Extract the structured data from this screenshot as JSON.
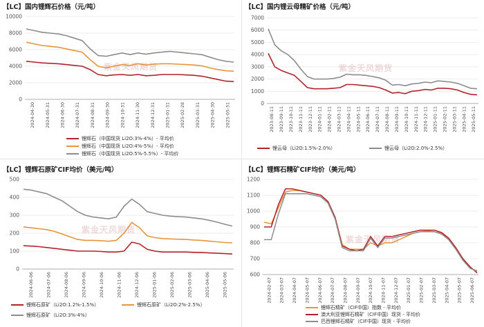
{
  "colors": {
    "red": "#b4202a",
    "orange": "#e8943a",
    "gray": "#8c8c8c",
    "brown": "#7a4b2a",
    "grid": "#e4e4e4",
    "axis": "#999999",
    "tick_text": "#555555"
  },
  "watermark": "紫金天风期货",
  "chart_data": [
    {
      "type": "line",
      "title": "【LC】国内锂辉石价格（元/吨）",
      "ylim": [
        0,
        10000
      ],
      "yticks": [
        0,
        2000,
        4000,
        6000,
        8000,
        10000
      ],
      "xticks": [
        "2024-04-30",
        "2024-05-31",
        "2024-06-30",
        "2024-07-31",
        "2024-08-31",
        "2024-09-30",
        "2024-10-31",
        "2024-11-30",
        "2024-12-31",
        "2025-01-31",
        "2025-02-28",
        "2025-03-31",
        "2025-04-30",
        "2025-05-31"
      ],
      "series": [
        {
          "name": "锂辉石（中国现货 Li2O:3%-4%）- 平均价",
          "color": "red",
          "values": [
            4600,
            4500,
            4400,
            4350,
            4300,
            4200,
            4100,
            4000,
            3600,
            3000,
            2850,
            2950,
            3000,
            2900,
            3000,
            2850,
            2900,
            3000,
            3000,
            3000,
            2950,
            2900,
            2800,
            2600,
            2400,
            2200,
            2150
          ]
        },
        {
          "name": "锂辉石（中国现货 Li2O:4%-5%）- 平均价",
          "color": "orange",
          "values": [
            6900,
            6700,
            6500,
            6400,
            6300,
            6100,
            5900,
            5700,
            4800,
            4000,
            3800,
            4000,
            4200,
            4100,
            4300,
            4150,
            4250,
            4300,
            4300,
            4250,
            4200,
            4150,
            4050,
            3800,
            3600,
            3450,
            3400
          ]
        },
        {
          "name": "锂辉石（中国现货 Li2O:5%-5.5%）- 平均价",
          "color": "gray",
          "values": [
            8500,
            8300,
            8100,
            8000,
            7900,
            7700,
            7400,
            7100,
            6100,
            5300,
            5200,
            5400,
            5600,
            5400,
            5600,
            5450,
            5600,
            5700,
            5800,
            5700,
            5600,
            5500,
            5400,
            5100,
            4800,
            4600,
            4500
          ]
        }
      ]
    },
    {
      "type": "line",
      "title": "【LC】国内锂云母精矿价格（元/吨）",
      "ylim": [
        0,
        7000
      ],
      "yticks": [
        0,
        1000,
        2000,
        3000,
        4000,
        5000,
        6000,
        7000
      ],
      "xticks": [
        "2023-08-11",
        "2023-09-11",
        "2023-10-11",
        "2023-11-11",
        "2023-12-11",
        "2024-01-11",
        "2024-02-11",
        "2024-03-11",
        "2024-04-11",
        "2024-05-11",
        "2024-06-11",
        "2024-07-11",
        "2024-08-11",
        "2024-09-11",
        "2024-10-11",
        "2024-11-11",
        "2024-12-11",
        "2025-01-11",
        "2025-02-11",
        "2025-03-11",
        "2025-04-11",
        "2025-05-11"
      ],
      "series": [
        {
          "name": "锂云母（Li2O:1.5%-2.0%）",
          "color": "red",
          "values": [
            4100,
            3000,
            2700,
            2500,
            2300,
            1800,
            1300,
            1200,
            1200,
            1200,
            1250,
            1300,
            1550,
            1550,
            1500,
            1450,
            1400,
            1300,
            1100,
            850,
            900,
            800,
            1000,
            1050,
            1150,
            1100,
            1250,
            1250,
            1200,
            1100,
            900,
            750,
            700
          ]
        },
        {
          "name": "锂云母（Li2O:2.0%-2.5%）",
          "color": "gray",
          "values": [
            6100,
            4800,
            4300,
            4000,
            3500,
            2800,
            2200,
            2000,
            2000,
            2000,
            2050,
            2150,
            2400,
            2350,
            2350,
            2300,
            2200,
            2100,
            1900,
            1500,
            1550,
            1450,
            1600,
            1650,
            1750,
            1700,
            1850,
            1800,
            1750,
            1650,
            1450,
            1250,
            1200
          ]
        }
      ]
    },
    {
      "type": "line",
      "title": "【LC】锂辉石原矿CIF均价（美元/吨）",
      "ylim": [
        0,
        500
      ],
      "yticks": [
        0,
        100,
        200,
        300,
        400,
        500
      ],
      "xticks": [
        "2024-06-06",
        "2024-07-06",
        "2024-08-06",
        "2024-09-06",
        "2024-10-06",
        "2024-11-06",
        "2024-12-06",
        "2025-01-06",
        "2025-02-06",
        "2025-03-06",
        "2025-04-06",
        "2025-05-06"
      ],
      "series": [
        {
          "name": "锂辉石原矿（Li2O:1.2%-1.5%）",
          "color": "red",
          "values": [
            130,
            128,
            125,
            120,
            115,
            110,
            105,
            100,
            100,
            100,
            98,
            95,
            95,
            100,
            150,
            140,
            110,
            100,
            95,
            95,
            95,
            95,
            93,
            92,
            90,
            88,
            86,
            84
          ]
        },
        {
          "name": "锂辉石原矿（Li2O:2%-2.5%）",
          "color": "orange",
          "values": [
            235,
            230,
            225,
            220,
            210,
            195,
            180,
            165,
            160,
            160,
            158,
            155,
            160,
            200,
            260,
            230,
            185,
            175,
            170,
            168,
            166,
            165,
            162,
            160,
            156,
            152,
            148,
            146
          ]
        },
        {
          "name": "锂辉石原矿（Li2O:3%-4%）",
          "color": "gray",
          "values": [
            445,
            440,
            430,
            420,
            400,
            380,
            350,
            320,
            300,
            290,
            285,
            280,
            290,
            350,
            390,
            360,
            320,
            310,
            300,
            295,
            292,
            290,
            285,
            280,
            272,
            262,
            250,
            240
          ]
        }
      ]
    },
    {
      "type": "line",
      "title": "【LC】锂辉石精矿CIF均价（美元/吨）",
      "ylim": [
        600,
        1200
      ],
      "yticks": [
        600,
        700,
        800,
        900,
        1000,
        1100,
        1200
      ],
      "xticks": [
        "2024-02-07",
        "2024-03-07",
        "2024-04-07",
        "2024-05-07",
        "2024-06-07",
        "2024-07-07",
        "2024-08-07",
        "2024-09-07",
        "2024-10-07",
        "2024-11-07",
        "2024-12-07",
        "2025-01-07",
        "2025-02-07",
        "2025-03-07",
        "2025-04-07",
        "2025-05-07",
        "2025-06-07"
      ],
      "series": [
        {
          "name": "锂辉石精矿（CIF中国）指数 - 平均价",
          "color": "orange",
          "values": [
            930,
            920,
            1020,
            1120,
            1130,
            1130,
            1120,
            1110,
            1100,
            1060,
            960,
            790,
            760,
            760,
            760,
            800,
            780,
            800,
            800,
            820,
            840,
            860,
            870,
            875,
            870,
            860,
            820,
            760,
            700,
            640,
            625
          ]
        },
        {
          "name": "澳大利亚锂辉石精矿（CIF中国）现货 - 平均价",
          "color": "red",
          "values": [
            900,
            900,
            1040,
            1140,
            1140,
            1130,
            1120,
            1110,
            1100,
            1060,
            960,
            780,
            760,
            750,
            760,
            840,
            780,
            840,
            840,
            850,
            860,
            870,
            880,
            880,
            880,
            865,
            830,
            770,
            700,
            650,
            610
          ]
        },
        {
          "name": "巴西锂辉石精矿（CIF中国）现货 - 平均价",
          "color": "gray",
          "values": [
            820,
            820,
            980,
            1110,
            1110,
            1110,
            1110,
            1100,
            1090,
            1050,
            950,
            770,
            750,
            750,
            750,
            830,
            770,
            830,
            830,
            840,
            850,
            860,
            870,
            870,
            870,
            855,
            820,
            760,
            690,
            640,
            620
          ]
        }
      ]
    }
  ]
}
